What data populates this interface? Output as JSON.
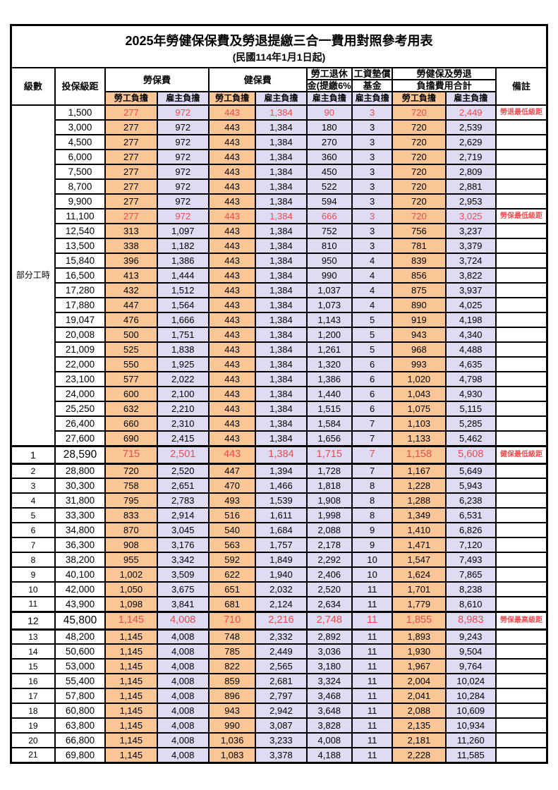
{
  "title": "2025年勞健保保費及勞退提繳三合一費用對照參考用表",
  "subtitle": "(民國114年1月1日起)",
  "header": {
    "level": "級數",
    "bracket": "投保級距",
    "labor_insurance": "勞保費",
    "health_insurance": "健保費",
    "pension_line1": "勞工退休",
    "pension_line2": "金(提繳6%)",
    "wage_fund_line1": "工資墊償",
    "wage_fund_line2": "基金",
    "total_line1": "勞健保及勞退",
    "total_line2": "負擔費用合計",
    "remark": "備註",
    "employee": "勞工負擔",
    "employer": "雇主負擔"
  },
  "part_time_label": "部分工時",
  "colors": {
    "employee_bg": "#FAC695",
    "employer_bg": "#DEDBF2",
    "highlight_text": "#ED4C4F"
  },
  "rows": [
    {
      "level": "部分工時",
      "level_rowspan": 23,
      "bracket": "1,500",
      "values": [
        "277",
        "972",
        "443",
        "1,384",
        "90",
        "3",
        "720",
        "2,449"
      ],
      "remark": "勞退最低級距",
      "red": true
    },
    {
      "bracket": "3,000",
      "values": [
        "277",
        "972",
        "443",
        "1,384",
        "180",
        "3",
        "720",
        "2,539"
      ],
      "remark": ""
    },
    {
      "bracket": "4,500",
      "values": [
        "277",
        "972",
        "443",
        "1,384",
        "270",
        "3",
        "720",
        "2,629"
      ],
      "remark": ""
    },
    {
      "bracket": "6,000",
      "values": [
        "277",
        "972",
        "443",
        "1,384",
        "360",
        "3",
        "720",
        "2,719"
      ],
      "remark": ""
    },
    {
      "bracket": "7,500",
      "values": [
        "277",
        "972",
        "443",
        "1,384",
        "450",
        "3",
        "720",
        "2,809"
      ],
      "remark": ""
    },
    {
      "bracket": "8,700",
      "values": [
        "277",
        "972",
        "443",
        "1,384",
        "522",
        "3",
        "720",
        "2,881"
      ],
      "remark": ""
    },
    {
      "bracket": "9,900",
      "values": [
        "277",
        "972",
        "443",
        "1,384",
        "594",
        "3",
        "720",
        "2,953"
      ],
      "remark": ""
    },
    {
      "bracket": "11,100",
      "values": [
        "277",
        "972",
        "443",
        "1,384",
        "666",
        "3",
        "720",
        "3,025"
      ],
      "remark": "勞保最低級距",
      "red": true
    },
    {
      "bracket": "12,540",
      "values": [
        "313",
        "1,097",
        "443",
        "1,384",
        "752",
        "3",
        "756",
        "3,237"
      ],
      "remark": ""
    },
    {
      "bracket": "13,500",
      "values": [
        "338",
        "1,182",
        "443",
        "1,384",
        "810",
        "3",
        "781",
        "3,379"
      ],
      "remark": ""
    },
    {
      "bracket": "15,840",
      "values": [
        "396",
        "1,386",
        "443",
        "1,384",
        "950",
        "4",
        "839",
        "3,724"
      ],
      "remark": ""
    },
    {
      "bracket": "16,500",
      "values": [
        "413",
        "1,444",
        "443",
        "1,384",
        "990",
        "4",
        "856",
        "3,822"
      ],
      "remark": ""
    },
    {
      "bracket": "17,280",
      "values": [
        "432",
        "1,512",
        "443",
        "1,384",
        "1,037",
        "4",
        "875",
        "3,937"
      ],
      "remark": ""
    },
    {
      "bracket": "17,880",
      "values": [
        "447",
        "1,564",
        "443",
        "1,384",
        "1,073",
        "4",
        "890",
        "4,025"
      ],
      "remark": ""
    },
    {
      "bracket": "19,047",
      "values": [
        "476",
        "1,666",
        "443",
        "1,384",
        "1,143",
        "5",
        "919",
        "4,198"
      ],
      "remark": ""
    },
    {
      "bracket": "20,008",
      "values": [
        "500",
        "1,751",
        "443",
        "1,384",
        "1,200",
        "5",
        "943",
        "4,340"
      ],
      "remark": ""
    },
    {
      "bracket": "21,009",
      "values": [
        "525",
        "1,838",
        "443",
        "1,384",
        "1,261",
        "5",
        "968",
        "4,488"
      ],
      "remark": ""
    },
    {
      "bracket": "22,000",
      "values": [
        "550",
        "1,925",
        "443",
        "1,384",
        "1,320",
        "6",
        "993",
        "4,635"
      ],
      "remark": ""
    },
    {
      "bracket": "23,100",
      "values": [
        "577",
        "2,022",
        "443",
        "1,384",
        "1,386",
        "6",
        "1,020",
        "4,798"
      ],
      "remark": ""
    },
    {
      "bracket": "24,000",
      "values": [
        "600",
        "2,100",
        "443",
        "1,384",
        "1,440",
        "6",
        "1,043",
        "4,930"
      ],
      "remark": ""
    },
    {
      "bracket": "25,250",
      "values": [
        "632",
        "2,210",
        "443",
        "1,384",
        "1,515",
        "6",
        "1,075",
        "5,115"
      ],
      "remark": ""
    },
    {
      "bracket": "26,400",
      "values": [
        "660",
        "2,310",
        "443",
        "1,384",
        "1,584",
        "7",
        "1,103",
        "5,285"
      ],
      "remark": ""
    },
    {
      "bracket": "27,600",
      "values": [
        "690",
        "2,415",
        "443",
        "1,384",
        "1,656",
        "7",
        "1,133",
        "5,462"
      ],
      "remark": ""
    },
    {
      "level": "1",
      "bracket": "28,590",
      "values": [
        "715",
        "2,501",
        "443",
        "1,384",
        "1,715",
        "7",
        "1,158",
        "5,608"
      ],
      "remark": "健保最低級距",
      "red": true,
      "big": true
    },
    {
      "level": "2",
      "bracket": "28,800",
      "values": [
        "720",
        "2,520",
        "447",
        "1,394",
        "1,728",
        "7",
        "1,167",
        "5,649"
      ],
      "remark": ""
    },
    {
      "level": "3",
      "bracket": "30,300",
      "values": [
        "758",
        "2,651",
        "470",
        "1,466",
        "1,818",
        "8",
        "1,228",
        "5,943"
      ],
      "remark": ""
    },
    {
      "level": "4",
      "bracket": "31,800",
      "values": [
        "795",
        "2,783",
        "493",
        "1,539",
        "1,908",
        "8",
        "1,288",
        "6,238"
      ],
      "remark": ""
    },
    {
      "level": "5",
      "bracket": "33,300",
      "values": [
        "833",
        "2,914",
        "516",
        "1,611",
        "1,998",
        "8",
        "1,349",
        "6,531"
      ],
      "remark": ""
    },
    {
      "level": "6",
      "bracket": "34,800",
      "values": [
        "870",
        "3,045",
        "540",
        "1,684",
        "2,088",
        "9",
        "1,410",
        "6,826"
      ],
      "remark": ""
    },
    {
      "level": "7",
      "bracket": "36,300",
      "values": [
        "908",
        "3,176",
        "563",
        "1,757",
        "2,178",
        "9",
        "1,471",
        "7,120"
      ],
      "remark": ""
    },
    {
      "level": "8",
      "bracket": "38,200",
      "values": [
        "955",
        "3,342",
        "592",
        "1,849",
        "2,292",
        "10",
        "1,547",
        "7,493"
      ],
      "remark": ""
    },
    {
      "level": "9",
      "bracket": "40,100",
      "values": [
        "1,002",
        "3,509",
        "622",
        "1,940",
        "2,406",
        "10",
        "1,624",
        "7,865"
      ],
      "remark": ""
    },
    {
      "level": "10",
      "bracket": "42,000",
      "values": [
        "1,050",
        "3,675",
        "651",
        "2,032",
        "2,520",
        "11",
        "1,701",
        "8,238"
      ],
      "remark": ""
    },
    {
      "level": "11",
      "bracket": "43,900",
      "values": [
        "1,098",
        "3,841",
        "681",
        "2,124",
        "2,634",
        "11",
        "1,779",
        "8,610"
      ],
      "remark": ""
    },
    {
      "level": "12",
      "bracket": "45,800",
      "values": [
        "1,145",
        "4,008",
        "710",
        "2,216",
        "2,748",
        "11",
        "1,855",
        "8,983"
      ],
      "remark": "勞保最高級距",
      "red": true,
      "big": true
    },
    {
      "level": "13",
      "bracket": "48,200",
      "values": [
        "1,145",
        "4,008",
        "748",
        "2,332",
        "2,892",
        "11",
        "1,893",
        "9,243"
      ],
      "remark": ""
    },
    {
      "level": "14",
      "bracket": "50,600",
      "values": [
        "1,145",
        "4,008",
        "785",
        "2,449",
        "3,036",
        "11",
        "1,930",
        "9,504"
      ],
      "remark": ""
    },
    {
      "level": "15",
      "bracket": "53,000",
      "values": [
        "1,145",
        "4,008",
        "822",
        "2,565",
        "3,180",
        "11",
        "1,967",
        "9,764"
      ],
      "remark": ""
    },
    {
      "level": "16",
      "bracket": "55,400",
      "values": [
        "1,145",
        "4,008",
        "859",
        "2,681",
        "3,324",
        "11",
        "2,004",
        "10,024"
      ],
      "remark": ""
    },
    {
      "level": "17",
      "bracket": "57,800",
      "values": [
        "1,145",
        "4,008",
        "896",
        "2,797",
        "3,468",
        "11",
        "2,041",
        "10,284"
      ],
      "remark": ""
    },
    {
      "level": "18",
      "bracket": "60,800",
      "values": [
        "1,145",
        "4,008",
        "943",
        "2,942",
        "3,648",
        "11",
        "2,088",
        "10,609"
      ],
      "remark": ""
    },
    {
      "level": "19",
      "bracket": "63,800",
      "values": [
        "1,145",
        "4,008",
        "990",
        "3,087",
        "3,828",
        "11",
        "2,135",
        "10,934"
      ],
      "remark": ""
    },
    {
      "level": "20",
      "bracket": "66,800",
      "values": [
        "1,145",
        "4,008",
        "1,036",
        "3,233",
        "4,008",
        "11",
        "2,181",
        "11,260"
      ],
      "remark": ""
    },
    {
      "level": "21",
      "bracket": "69,800",
      "values": [
        "1,145",
        "4,008",
        "1,083",
        "3,378",
        "4,188",
        "11",
        "2,228",
        "11,585"
      ],
      "remark": ""
    }
  ]
}
